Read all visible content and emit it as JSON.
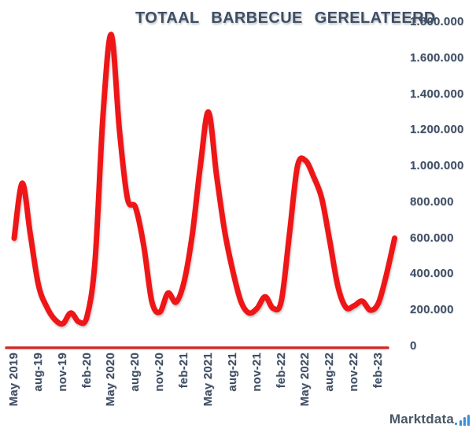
{
  "title": "TOTAAL BARBECUE GERELATEERD",
  "watermark": {
    "text": "Marktdata",
    "icon": "bar-chart-icon"
  },
  "colors": {
    "line_red": "#ee1414",
    "axis_red": "#d42c2c",
    "label_text": "#3f4e63",
    "logo_text": "#4a5767",
    "logo_blue": "#3a8fd8",
    "background": "#ffffff"
  },
  "chart_data": {
    "type": "line",
    "title": "TOTAAL BARBECUE GERELATEERD",
    "x": [
      "May-19",
      "jun-19",
      "jul-19",
      "aug-19",
      "sep-19",
      "okt-19",
      "nov-19",
      "dec-19",
      "jan-20",
      "feb-20",
      "mrt-20",
      "apr-20",
      "May-20",
      "jun-20",
      "jul-20",
      "aug-20",
      "sep-20",
      "okt-20",
      "nov-20",
      "dec-20",
      "jan-21",
      "feb-21",
      "mrt-21",
      "apr-21",
      "May-21",
      "jun-21",
      "jul-21",
      "aug-21",
      "sep-21",
      "okt-21",
      "nov-21",
      "dec-21",
      "jan-22",
      "feb-22",
      "mrt-22",
      "apr-22",
      "May-22",
      "jun-22",
      "jul-22",
      "aug-22",
      "sep-22",
      "okt-22",
      "nov-22",
      "dec-22",
      "jan-23",
      "feb-23",
      "mrt-23",
      "apr-23"
    ],
    "values": [
      600000,
      905000,
      620000,
      340000,
      220000,
      150000,
      125000,
      185000,
      135000,
      165000,
      480000,
      1300000,
      1730000,
      1200000,
      820000,
      770000,
      560000,
      250000,
      190000,
      295000,
      245000,
      360000,
      620000,
      1000000,
      1300000,
      950000,
      640000,
      420000,
      250000,
      185000,
      210000,
      275000,
      210000,
      250000,
      620000,
      1000000,
      1030000,
      940000,
      820000,
      580000,
      330000,
      215000,
      225000,
      250000,
      200000,
      240000,
      400000,
      600000
    ],
    "x_tick_labels": [
      "May 2019",
      "aug-19",
      "nov-19",
      "feb-20",
      "May 2020",
      "aug-20",
      "nov-20",
      "feb-21",
      "May 2021",
      "aug-21",
      "nov-21",
      "feb-22",
      "May 2022",
      "aug-22",
      "nov-22",
      "feb-23"
    ],
    "x_tick_every": 3,
    "y_tick_labels": [
      "0",
      "200.000",
      "400.000",
      "600.000",
      "800.000",
      "1.000.000",
      "1.200.000",
      "1.400.000",
      "1.600.000",
      "1.800.000"
    ],
    "ylim": [
      0,
      1800000
    ],
    "grid": false,
    "legend": null,
    "line_style": "thick-smooth-red"
  }
}
